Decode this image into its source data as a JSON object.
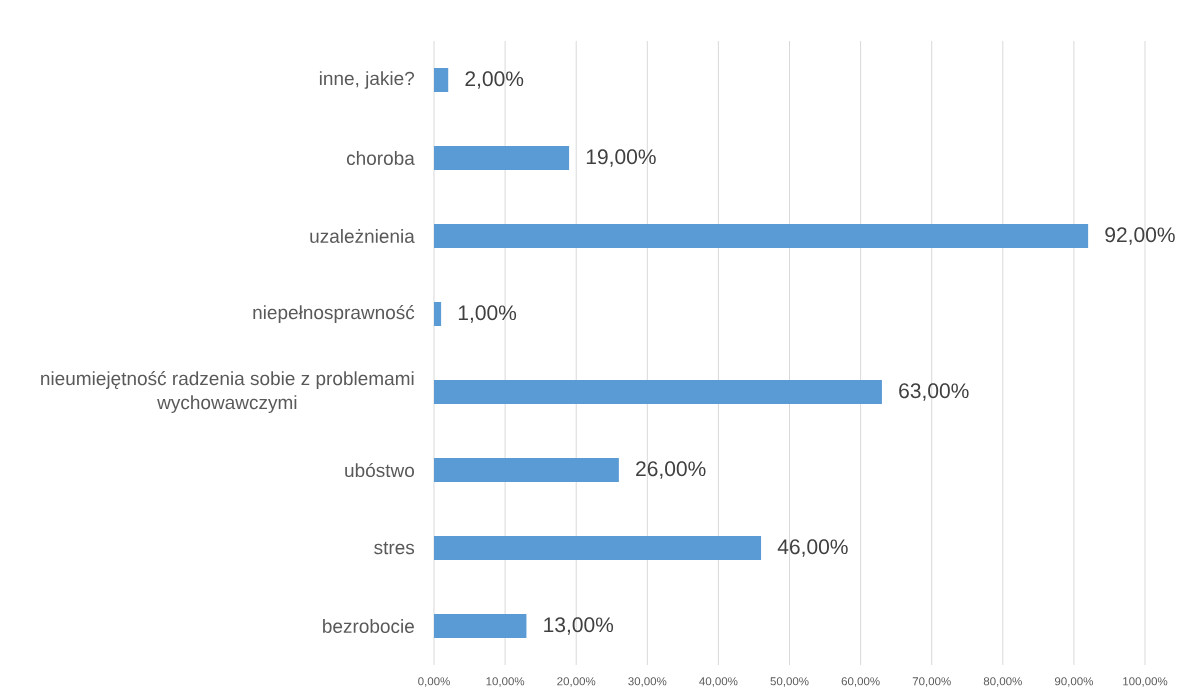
{
  "chart_data": {
    "type": "bar",
    "orientation": "horizontal",
    "categories": [
      "inne, jakie?",
      "choroba",
      "uzależnienia",
      "niepełnosprawność",
      "nieumiejętność radzenia sobie z problemami wychowawczymi",
      "ubóstwo",
      "stres",
      "bezrobocie"
    ],
    "values": [
      2,
      19,
      92,
      1,
      63,
      26,
      46,
      13
    ],
    "value_labels": [
      "2,00%",
      "19,00%",
      "92,00%",
      "1,00%",
      "63,00%",
      "26,00%",
      "46,00%",
      "13,00%"
    ],
    "color": "#5b9bd5",
    "xlim": [
      0,
      100
    ],
    "xticks": [
      {
        "value": 0,
        "label": "0,00%"
      },
      {
        "value": 10,
        "label": "10,00%"
      },
      {
        "value": 20,
        "label": "20,00%"
      },
      {
        "value": 30,
        "label": "30,00%"
      },
      {
        "value": 40,
        "label": "40,00%"
      },
      {
        "value": 50,
        "label": "50,00%"
      },
      {
        "value": 60,
        "label": "60,00%"
      },
      {
        "value": 70,
        "label": "70,00%"
      },
      {
        "value": 80,
        "label": "80,00%"
      },
      {
        "value": 90,
        "label": "90,00%"
      },
      {
        "value": 100,
        "label": "100,00%"
      }
    ],
    "grid": "x"
  }
}
